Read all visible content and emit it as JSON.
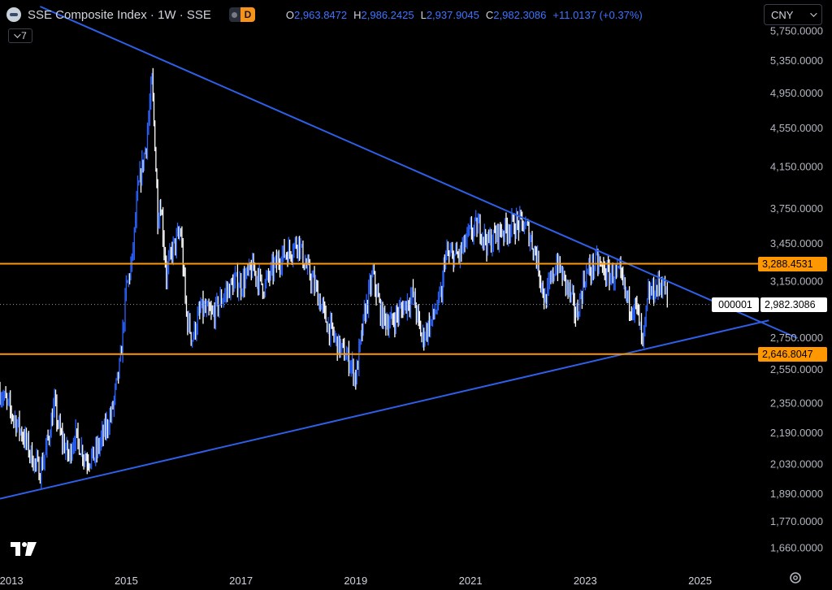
{
  "header": {
    "title": "SSE Composite Index · 1W · SSE",
    "mode_label": "D",
    "ohlc": [
      {
        "key": "O",
        "value": "2,963.8472"
      },
      {
        "key": "H",
        "value": "2,986.2425"
      },
      {
        "key": "L",
        "value": "2,937.9045"
      },
      {
        "key": "C",
        "value": "2,982.3086"
      }
    ],
    "change": "+11.0137 (+0.37%)"
  },
  "indicators_collapse": {
    "count": "7"
  },
  "currency": {
    "selected": "CNY"
  },
  "price_tags": {
    "resistance": "3,288.4531",
    "support": "2,646.8047",
    "symbol": "000001",
    "last": "2,982.3086"
  },
  "colors": {
    "background": "#000000",
    "trendline": "#2e5fe6",
    "horizontal_level": "#ff9800",
    "bar_up": "#2962ff",
    "bar_down": "#ffffff"
  },
  "icons": [
    "symbol-icon",
    "chevron-down-icon",
    "tradingview-logo-icon",
    "settings-icon"
  ],
  "chart_data": {
    "type": "ohlc_bar",
    "title": "SSE Composite Index · 1W · SSE",
    "x_ticks": [
      "2013",
      "2015",
      "2017",
      "2019",
      "2021",
      "2023",
      "2025"
    ],
    "y_ticks": [
      5750,
      5350,
      4950,
      4550,
      4150,
      3750,
      3450,
      3150,
      2750,
      2550,
      2350,
      2190,
      2030,
      1890,
      1770,
      1660
    ],
    "y_tick_labels": [
      "5,750.0000",
      "5,350.0000",
      "4,950.0000",
      "4,550.0000",
      "4,150.0000",
      "3,750.0000",
      "3,450.0000",
      "3,150.0000",
      "2,750.0000",
      "2,550.0000",
      "2,350.0000",
      "2,190.0000",
      "2,030.0000",
      "1,890.0000",
      "1,770.0000",
      "1,660.0000"
    ],
    "y_scale": "log",
    "y_range": [
      1580,
      6100
    ],
    "x_range": [
      2012.8,
      2027.3
    ],
    "grid": false,
    "series_path": [
      [
        2012.8,
        2420
      ],
      [
        2013.0,
        2300
      ],
      [
        2013.2,
        2180
      ],
      [
        2013.4,
        2040
      ],
      [
        2013.5,
        2000
      ],
      [
        2013.6,
        2100
      ],
      [
        2013.75,
        2340
      ],
      [
        2013.85,
        2180
      ],
      [
        2014.0,
        2070
      ],
      [
        2014.1,
        2180
      ],
      [
        2014.3,
        2060
      ],
      [
        2014.45,
        2070
      ],
      [
        2014.6,
        2180
      ],
      [
        2014.75,
        2300
      ],
      [
        2014.9,
        2600
      ],
      [
        2015.0,
        3100
      ],
      [
        2015.1,
        3300
      ],
      [
        2015.2,
        3900
      ],
      [
        2015.35,
        4400
      ],
      [
        2015.45,
        5100
      ],
      [
        2015.5,
        4400
      ],
      [
        2015.55,
        3700
      ],
      [
        2015.6,
        3800
      ],
      [
        2015.7,
        3200
      ],
      [
        2015.8,
        3400
      ],
      [
        2015.95,
        3550
      ],
      [
        2016.05,
        2900
      ],
      [
        2016.15,
        2750
      ],
      [
        2016.3,
        2950
      ],
      [
        2016.5,
        2900
      ],
      [
        2016.7,
        3050
      ],
      [
        2016.9,
        3150
      ],
      [
        2017.0,
        3130
      ],
      [
        2017.2,
        3250
      ],
      [
        2017.4,
        3110
      ],
      [
        2017.5,
        3200
      ],
      [
        2017.7,
        3350
      ],
      [
        2017.85,
        3390
      ],
      [
        2018.0,
        3480
      ],
      [
        2018.1,
        3300
      ],
      [
        2018.3,
        3100
      ],
      [
        2018.5,
        2850
      ],
      [
        2018.7,
        2700
      ],
      [
        2018.9,
        2600
      ],
      [
        2019.0,
        2500
      ],
      [
        2019.15,
        2900
      ],
      [
        2019.3,
        3200
      ],
      [
        2019.45,
        2900
      ],
      [
        2019.6,
        2850
      ],
      [
        2019.8,
        2950
      ],
      [
        2020.0,
        3050
      ],
      [
        2020.15,
        2750
      ],
      [
        2020.3,
        2850
      ],
      [
        2020.5,
        3050
      ],
      [
        2020.55,
        3350
      ],
      [
        2020.8,
        3350
      ],
      [
        2021.0,
        3550
      ],
      [
        2021.15,
        3600
      ],
      [
        2021.3,
        3450
      ],
      [
        2021.5,
        3550
      ],
      [
        2021.7,
        3600
      ],
      [
        2021.9,
        3620
      ],
      [
        2022.0,
        3560
      ],
      [
        2022.15,
        3350
      ],
      [
        2022.3,
        3000
      ],
      [
        2022.5,
        3300
      ],
      [
        2022.7,
        3100
      ],
      [
        2022.85,
        2900
      ],
      [
        2023.0,
        3200
      ],
      [
        2023.2,
        3300
      ],
      [
        2023.4,
        3200
      ],
      [
        2023.6,
        3200
      ],
      [
        2023.75,
        3000
      ],
      [
        2023.9,
        2950
      ],
      [
        2024.0,
        2700
      ],
      [
        2024.1,
        3050
      ],
      [
        2024.25,
        3100
      ],
      [
        2024.35,
        3150
      ],
      [
        2024.45,
        2982
      ]
    ],
    "trendlines": [
      {
        "name": "descending",
        "points": [
          [
            2013.5,
            6100
          ],
          [
            2026.7,
            2750
          ]
        ]
      },
      {
        "name": "ascending",
        "points": [
          [
            2012.8,
            1870
          ],
          [
            2026.2,
            2870
          ]
        ]
      }
    ],
    "horizontal_levels": [
      3288.4531,
      2646.8047
    ],
    "last_price": 2982.3086,
    "symbol": "000001"
  }
}
